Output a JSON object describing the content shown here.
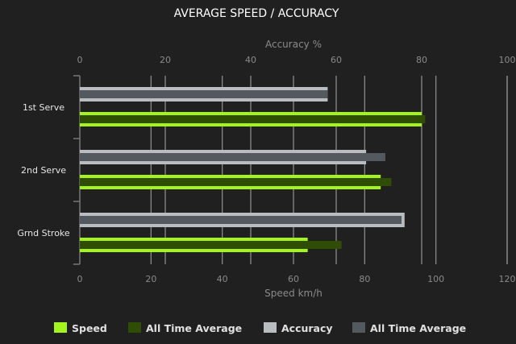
{
  "chart_data": {
    "type": "bar",
    "orientation": "horizontal",
    "title": "AVERAGE SPEED / ACCURACY",
    "categories": [
      "1st Serve",
      "2nd Serve",
      "Grnd Stroke"
    ],
    "x_bottom": {
      "label": "Speed km/h",
      "range": [
        0,
        120
      ],
      "ticks": [
        0,
        20,
        40,
        60,
        80,
        100,
        120
      ]
    },
    "x_top": {
      "label": "Accuracy %",
      "range": [
        0,
        100
      ],
      "ticks": [
        0,
        20,
        40,
        60,
        80,
        100
      ]
    },
    "grid": true,
    "legend_position": "bottom",
    "series": [
      {
        "name": "Speed",
        "axis": "bottom",
        "color": "#a4f51e",
        "values": [
          96,
          84.5,
          64
        ]
      },
      {
        "name": "All Time Average",
        "axis": "bottom",
        "color": "#2f4d03",
        "values": [
          97,
          87.5,
          73.5
        ]
      },
      {
        "name": "Accuracy",
        "axis": "top",
        "color": "#babdbf",
        "values": [
          58,
          67,
          76
        ]
      },
      {
        "name": "All Time Average",
        "axis": "top",
        "color": "#545960",
        "values": [
          58,
          71.5,
          75.3
        ]
      }
    ]
  }
}
